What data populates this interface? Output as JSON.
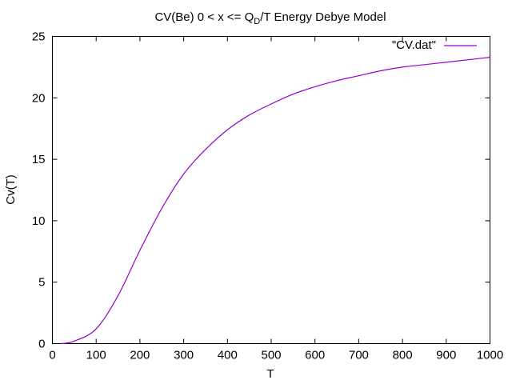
{
  "chart_data": {
    "type": "line",
    "title": {
      "prefix": "CV(Be) 0 < x <= Q",
      "sub": "D",
      "suffix": "/T  Energy Debye Model"
    },
    "xlabel": "T",
    "ylabel": "Cv(T)",
    "xlim": [
      0,
      1000
    ],
    "ylim": [
      0,
      25
    ],
    "x_ticks": [
      "0",
      "100",
      "200",
      "300",
      "400",
      "500",
      "600",
      "700",
      "800",
      "900",
      "1000"
    ],
    "y_ticks": [
      "0",
      "5",
      "10",
      "15",
      "20",
      "25"
    ],
    "grid": false,
    "legend_position": "top-right",
    "colors": {
      "series": "#9400d3",
      "axes": "#000000"
    },
    "series": [
      {
        "name": "\"CV.dat\"",
        "x": [
          20,
          50,
          100,
          150,
          200,
          250,
          300,
          350,
          400,
          450,
          500,
          550,
          600,
          650,
          700,
          750,
          800,
          850,
          900,
          950,
          1000
        ],
        "y": [
          0.0,
          0.2,
          1.2,
          3.9,
          7.6,
          11.0,
          13.8,
          15.8,
          17.4,
          18.6,
          19.5,
          20.3,
          20.9,
          21.4,
          21.8,
          22.2,
          22.5,
          22.7,
          22.9,
          23.1,
          23.3
        ]
      }
    ]
  }
}
